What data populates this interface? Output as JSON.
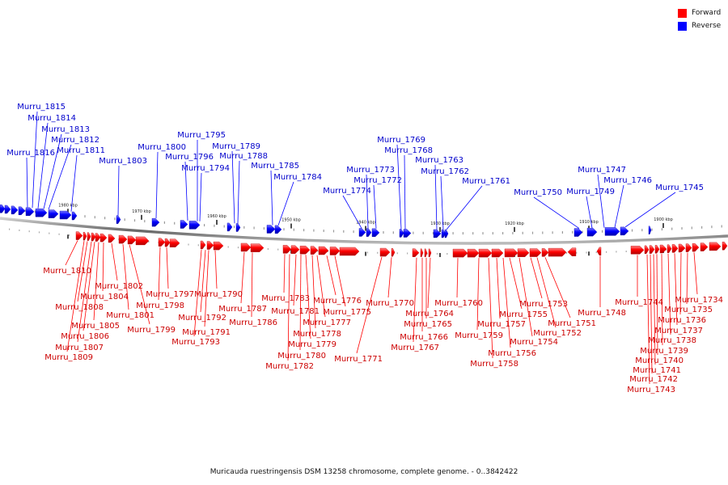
{
  "legend": {
    "forward": {
      "label": "Forward",
      "color": "#ff0000"
    },
    "reverse": {
      "label": "Reverse",
      "color": "#0000ff"
    }
  },
  "caption": "Muricauda ruestringensis DSM 13258 chromosome, complete genome. - 0..3842422",
  "scale_ticks": [
    "1980 kbp",
    "1970 kbp",
    "1960 kbp",
    "1950 kbp",
    "1940 kbp",
    "1930 kbp",
    "1920 kbp",
    "1910 kbp",
    "1900 kbp"
  ],
  "reverse_genes": [
    "Murru_1816",
    "Murru_1815",
    "Murru_1814",
    "Murru_1813",
    "Murru_1812",
    "Murru_1811",
    "Murru_1803",
    "Murru_1800",
    "Murru_1796",
    "Murru_1795",
    "Murru_1794",
    "Murru_1789",
    "Murru_1788",
    "Murru_1785",
    "Murru_1784",
    "Murru_1774",
    "Murru_1773",
    "Murru_1772",
    "Murru_1769",
    "Murru_1768",
    "Murru_1763",
    "Murru_1762",
    "Murru_1761",
    "Murru_1750",
    "Murru_1749",
    "Murru_1747",
    "Murru_1746",
    "Murru_1745"
  ],
  "forward_genes": [
    "Murru_1810",
    "Murru_1809",
    "Murru_1808",
    "Murru_1807",
    "Murru_1806",
    "Murru_1805",
    "Murru_1804",
    "Murru_1802",
    "Murru_1801",
    "Murru_1799",
    "Murru_1798",
    "Murru_1797",
    "Murru_1793",
    "Murru_1792",
    "Murru_1791",
    "Murru_1790",
    "Murru_1787",
    "Murru_1786",
    "Murru_1783",
    "Murru_1782",
    "Murru_1781",
    "Murru_1780",
    "Murru_1779",
    "Murru_1778",
    "Murru_1777",
    "Murru_1776",
    "Murru_1775",
    "Murru_1771",
    "Murru_1770",
    "Murru_1767",
    "Murru_1766",
    "Murru_1765",
    "Murru_1764",
    "Murru_1760",
    "Murru_1759",
    "Murru_1758",
    "Murru_1757",
    "Murru_1756",
    "Murru_1755",
    "Murru_1754",
    "Murru_1753",
    "Murru_1752",
    "Murru_1751",
    "Murru_1748",
    "Murru_1744",
    "Murru_1743",
    "Murru_1742",
    "Murru_1741",
    "Murru_1740",
    "Murru_1739",
    "Murru_1738",
    "Murru_1737",
    "Murru_1736",
    "Murru_1735",
    "Murru_1734"
  ]
}
